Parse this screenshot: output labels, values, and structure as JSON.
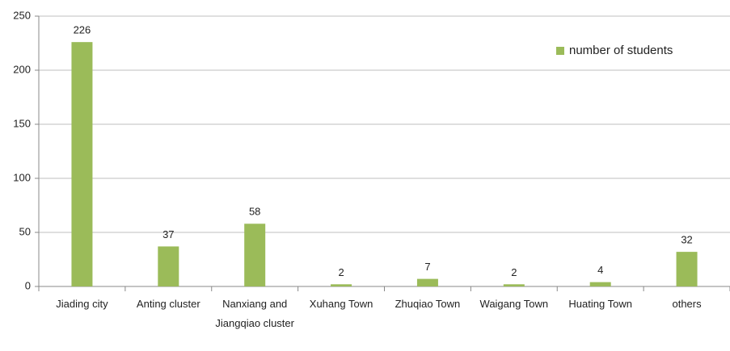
{
  "chart_data": {
    "type": "bar",
    "categories": [
      "Jiading city",
      "Anting cluster",
      "Nanxiang and Jiangqiao cluster",
      "Xuhang Town",
      "Zhuqiao Town",
      "Waigang Town",
      "Huating Town",
      "others"
    ],
    "series": [
      {
        "name": "number of students",
        "color": "#9bbb59",
        "values": [
          226,
          37,
          58,
          2,
          7,
          2,
          4,
          32
        ]
      }
    ],
    "ylim": [
      0,
      250
    ],
    "yticks": [
      0,
      50,
      100,
      150,
      200,
      250
    ],
    "grid": true,
    "legend": "top-right"
  }
}
